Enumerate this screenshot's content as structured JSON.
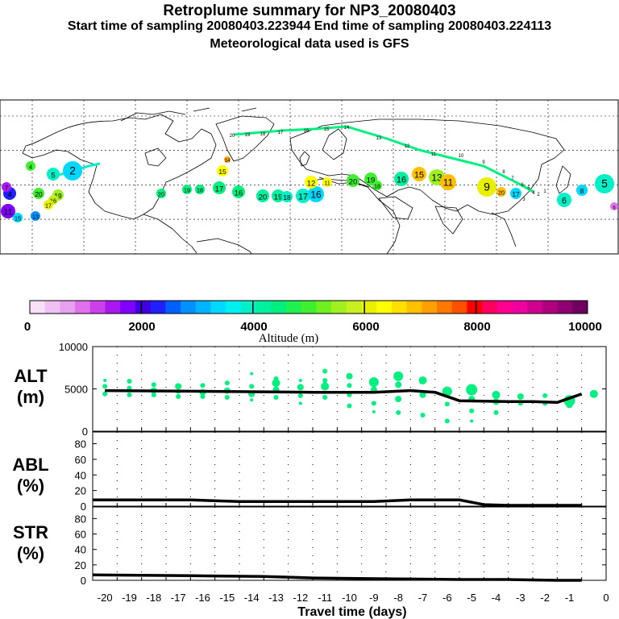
{
  "header": {
    "title": "Retroplume summary for NP3_20080403",
    "sampling": "Start time of sampling 20080403.223944     End time of sampling 20080403.224113",
    "met": "Meteorological data used is GFS"
  },
  "colorbar": {
    "label": "Altitude (m)",
    "tick_labels": [
      "0",
      "2000",
      "4000",
      "6000",
      "8000",
      "10000"
    ],
    "colors": [
      "#f8e0f8",
      "#f0c0f4",
      "#e8a0f0",
      "#e070ec",
      "#cc40ec",
      "#a818f0",
      "#8000ff",
      "#4000e0",
      "#2020ff",
      "#0060ff",
      "#0090ff",
      "#00b4ff",
      "#00d8ff",
      "#00f0f0",
      "#00f0c8",
      "#00f0a0",
      "#00f080",
      "#20f050",
      "#40f030",
      "#70f020",
      "#a0f020",
      "#c8f020",
      "#e8f000",
      "#ffff00",
      "#ffe000",
      "#ffc000",
      "#ffa000",
      "#ff7800",
      "#ff5000",
      "#ff0000",
      "#ff0060",
      "#ff0090",
      "#f000a0",
      "#d00090",
      "#b00080",
      "#900070",
      "#700060"
    ]
  },
  "map": {
    "trajectory_labels": [
      {
        "text": "20",
        "c": "#00f080"
      },
      {
        "text": "19",
        "c": "#00f080"
      },
      {
        "text": "18",
        "c": "#00f080"
      },
      {
        "text": "17",
        "c": "#00f080"
      },
      {
        "text": "16",
        "c": "#00f080"
      },
      {
        "text": "15",
        "c": "#00f080"
      },
      {
        "text": "14",
        "c": "#00f080"
      },
      {
        "text": "13",
        "c": "#00f080"
      },
      {
        "text": "12",
        "c": "#00f080"
      },
      {
        "text": "11",
        "c": "#00f080"
      },
      {
        "text": "10",
        "c": "#00f080"
      },
      {
        "text": "9",
        "c": "#00f080"
      },
      {
        "text": "8",
        "c": "#00f080"
      },
      {
        "text": "7",
        "c": "#00f080"
      },
      {
        "text": "6",
        "c": "#00f080"
      },
      {
        "text": "5",
        "c": "#00f080"
      },
      {
        "text": "4",
        "c": "#00f080"
      },
      {
        "text": "3",
        "c": "#00f080"
      },
      {
        "text": "2",
        "c": "#00f080"
      },
      {
        "text": "1",
        "c": "#00f080"
      }
    ],
    "clusters": [
      {
        "text": "4",
        "c": "#40f030"
      },
      {
        "text": "5",
        "c": "#00f0c8"
      },
      {
        "text": "2",
        "c": "#00d8ff"
      },
      {
        "text": "20",
        "c": "#40f030"
      },
      {
        "text": "19",
        "c": "#a0f020"
      },
      {
        "text": "16",
        "c": "#c8f020"
      },
      {
        "text": "17",
        "c": "#e8f000"
      },
      {
        "text": "11",
        "c": "#8000ff"
      },
      {
        "text": "15",
        "c": "#00d8ff"
      },
      {
        "text": "13",
        "c": "#0090ff"
      },
      {
        "text": "4",
        "c": "#2020ff"
      },
      {
        "text": "7",
        "c": "#a818f0"
      },
      {
        "text": "20",
        "c": "#00f080"
      },
      {
        "text": "19",
        "c": "#00f080"
      },
      {
        "text": "18",
        "c": "#00f080"
      },
      {
        "text": "17",
        "c": "#00f080"
      },
      {
        "text": "16",
        "c": "#00f080"
      },
      {
        "text": "15",
        "c": "#ffff00"
      },
      {
        "text": "14",
        "c": "#ffa000"
      },
      {
        "text": "20",
        "c": "#00f0a0"
      },
      {
        "text": "19",
        "c": "#00f0a0"
      },
      {
        "text": "18",
        "c": "#00f0c8"
      },
      {
        "text": "17",
        "c": "#00f0c8"
      },
      {
        "text": "16",
        "c": "#00d8ff"
      },
      {
        "text": "12",
        "c": "#ffff00"
      },
      {
        "text": "11",
        "c": "#ffff00"
      },
      {
        "text": "20",
        "c": "#40f030"
      },
      {
        "text": "19",
        "c": "#40f030"
      },
      {
        "text": "18",
        "c": "#40f030"
      },
      {
        "text": "16",
        "c": "#00f0a0"
      },
      {
        "text": "15",
        "c": "#ffc000"
      },
      {
        "text": "13",
        "c": "#a0f020"
      },
      {
        "text": "11",
        "c": "#ffc000"
      },
      {
        "text": "9",
        "c": "#e8f000"
      },
      {
        "text": "20",
        "c": "#ffc000"
      },
      {
        "text": "17",
        "c": "#00d8ff"
      },
      {
        "text": "6",
        "c": "#00f0c8"
      },
      {
        "text": "8",
        "c": "#00d8ff"
      },
      {
        "text": "5",
        "c": "#00f0c8"
      },
      {
        "text": "6",
        "c": "#e070ec"
      }
    ]
  },
  "chart_data": [
    {
      "type": "scatter",
      "name": "ALT",
      "ylabel": "ALT\n(m)",
      "ylabel_lines": [
        "ALT",
        "(m)"
      ],
      "yticks": [
        "10000",
        "5000",
        "0"
      ],
      "ylim": [
        0,
        10000
      ],
      "xlim": [
        -21,
        0
      ],
      "median_line": {
        "x": [
          -20.5,
          -16,
          -12,
          -9.5,
          -8,
          -7,
          -6,
          -4,
          -3,
          -2,
          -1
        ],
        "y": [
          4800,
          4700,
          4600,
          4600,
          4800,
          4600,
          3600,
          3500,
          3500,
          3400,
          4400
        ]
      },
      "particles": [
        {
          "x": -20.5,
          "y": 6000,
          "s": 2
        },
        {
          "x": -20.5,
          "y": 5300,
          "s": 3
        },
        {
          "x": -20.5,
          "y": 4400,
          "s": 3
        },
        {
          "x": -19.5,
          "y": 5900,
          "s": 3
        },
        {
          "x": -19.5,
          "y": 5100,
          "s": 3
        },
        {
          "x": -19.5,
          "y": 4300,
          "s": 3
        },
        {
          "x": -18.5,
          "y": 5500,
          "s": 3
        },
        {
          "x": -18.5,
          "y": 4800,
          "s": 4
        },
        {
          "x": -18.5,
          "y": 4300,
          "s": 3
        },
        {
          "x": -17.5,
          "y": 5300,
          "s": 4
        },
        {
          "x": -17.5,
          "y": 4700,
          "s": 3
        },
        {
          "x": -17.5,
          "y": 4100,
          "s": 3
        },
        {
          "x": -16.5,
          "y": 5400,
          "s": 3
        },
        {
          "x": -16.5,
          "y": 4600,
          "s": 4
        },
        {
          "x": -16.5,
          "y": 4100,
          "s": 3
        },
        {
          "x": -15.5,
          "y": 5700,
          "s": 3
        },
        {
          "x": -15.5,
          "y": 4800,
          "s": 4
        },
        {
          "x": -15.5,
          "y": 4000,
          "s": 3
        },
        {
          "x": -14.5,
          "y": 6800,
          "s": 2
        },
        {
          "x": -14.5,
          "y": 5300,
          "s": 3
        },
        {
          "x": -14.5,
          "y": 4400,
          "s": 4
        },
        {
          "x": -14.5,
          "y": 3700,
          "s": 2
        },
        {
          "x": -13.5,
          "y": 6200,
          "s": 3
        },
        {
          "x": -13.5,
          "y": 5700,
          "s": 5
        },
        {
          "x": -13.5,
          "y": 4900,
          "s": 4
        },
        {
          "x": -13.5,
          "y": 4000,
          "s": 3
        },
        {
          "x": -12.5,
          "y": 6000,
          "s": 2
        },
        {
          "x": -12.5,
          "y": 5200,
          "s": 4
        },
        {
          "x": -12.5,
          "y": 4200,
          "s": 3
        },
        {
          "x": -12.5,
          "y": 3300,
          "s": 2
        },
        {
          "x": -11.5,
          "y": 7100,
          "s": 3
        },
        {
          "x": -11.5,
          "y": 6000,
          "s": 3
        },
        {
          "x": -11.5,
          "y": 5300,
          "s": 5
        },
        {
          "x": -11.5,
          "y": 4000,
          "s": 3
        },
        {
          "x": -10.5,
          "y": 6500,
          "s": 4
        },
        {
          "x": -10.5,
          "y": 5400,
          "s": 3
        },
        {
          "x": -10.5,
          "y": 4300,
          "s": 3
        },
        {
          "x": -10.5,
          "y": 3000,
          "s": 3
        },
        {
          "x": -9.5,
          "y": 5800,
          "s": 6
        },
        {
          "x": -9.5,
          "y": 4900,
          "s": 4
        },
        {
          "x": -9.5,
          "y": 3300,
          "s": 3
        },
        {
          "x": -9.5,
          "y": 2300,
          "s": 2
        },
        {
          "x": -8.5,
          "y": 6500,
          "s": 6
        },
        {
          "x": -8.5,
          "y": 5500,
          "s": 4
        },
        {
          "x": -8.5,
          "y": 3800,
          "s": 4
        },
        {
          "x": -8.5,
          "y": 2200,
          "s": 3
        },
        {
          "x": -7.5,
          "y": 6000,
          "s": 5
        },
        {
          "x": -7.5,
          "y": 4300,
          "s": 4
        },
        {
          "x": -7.5,
          "y": 1900,
          "s": 3
        },
        {
          "x": -6.5,
          "y": 4700,
          "s": 6
        },
        {
          "x": -6.5,
          "y": 3200,
          "s": 3
        },
        {
          "x": -6.5,
          "y": 1200,
          "s": 3
        },
        {
          "x": -5.5,
          "y": 4900,
          "s": 7
        },
        {
          "x": -5.5,
          "y": 3800,
          "s": 4
        },
        {
          "x": -5.5,
          "y": 2400,
          "s": 3
        },
        {
          "x": -5.5,
          "y": 1200,
          "s": 2
        },
        {
          "x": -4.5,
          "y": 4300,
          "s": 5
        },
        {
          "x": -4.5,
          "y": 3500,
          "s": 4
        },
        {
          "x": -4.5,
          "y": 2200,
          "s": 3
        },
        {
          "x": -3.5,
          "y": 4100,
          "s": 4
        },
        {
          "x": -3.5,
          "y": 3300,
          "s": 3
        },
        {
          "x": -2.5,
          "y": 4200,
          "s": 3
        },
        {
          "x": -2.5,
          "y": 3300,
          "s": 3
        },
        {
          "x": -1.5,
          "y": 3600,
          "s": 7
        },
        {
          "x": -1.5,
          "y": 3100,
          "s": 4
        },
        {
          "x": -0.5,
          "y": 4400,
          "s": 5
        }
      ]
    },
    {
      "type": "line",
      "name": "ABL",
      "ylabel": "ABL\n(%)",
      "ylabel_lines": [
        "ABL",
        "(%)"
      ],
      "yticks": [
        "80",
        "60",
        "40",
        "20",
        "0"
      ],
      "ylim": [
        0,
        95
      ],
      "xlim": [
        -21,
        0
      ],
      "x": [
        -21,
        -17,
        -15,
        -11,
        -9.5,
        -8,
        -7,
        -6,
        -5,
        -4,
        -3,
        -2,
        -1
      ],
      "y": [
        8,
        8,
        6,
        6,
        6,
        8,
        8,
        8,
        2,
        1,
        1,
        1,
        1
      ]
    },
    {
      "type": "line",
      "name": "STR",
      "ylabel": "STR\n(%)",
      "ylabel_lines": [
        "STR",
        "(%)"
      ],
      "yticks": [
        "80",
        "60",
        "40",
        "20",
        "0"
      ],
      "ylim": [
        0,
        95
      ],
      "xlim": [
        -21,
        0
      ],
      "x": [
        -21,
        -17,
        -14,
        -13,
        -12,
        -9,
        -6,
        -4,
        -2,
        -1
      ],
      "y": [
        7,
        6,
        5,
        4,
        3,
        2,
        1,
        1,
        0,
        0
      ]
    }
  ],
  "xaxis": {
    "ticks": [
      "-20",
      "-19",
      "-18",
      "-17",
      "-16",
      "-15",
      "-14",
      "-13",
      "-12",
      "-11",
      "-10",
      "-9",
      "-8",
      "-7",
      "-6",
      "-5",
      "-4",
      "-3",
      "-2",
      "-1",
      "0"
    ],
    "label": "Travel time (days)"
  }
}
